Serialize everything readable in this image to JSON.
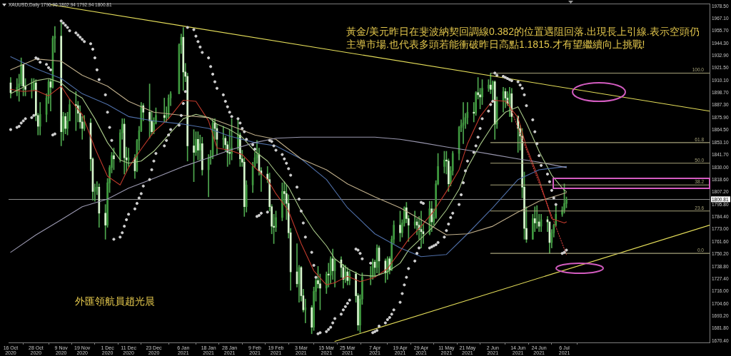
{
  "chart_data": {
    "type": "candlestick",
    "title": "XAUUSD,Daily 1796.96 1802.94 1792.94 1800.81",
    "annotations": [
      "黃金/美元昨日在斐波納契回調線0.382的位置遇阻回落.出現長上引線.表示空頭仍主導市場.也代表多頭若能衝破昨日高點1.1815.才有望繼續向上挑戰!",
      "外匯領航員趙光晨"
    ],
    "x": [
      "2020-10-16",
      "2020-10-19",
      "2020-10-20",
      "2020-10-21",
      "2020-10-22",
      "2020-10-23",
      "2020-10-26",
      "2020-10-27",
      "2020-10-28",
      "2020-10-29",
      "2020-10-30",
      "2020-11-02",
      "2020-11-03",
      "2020-11-04",
      "2020-11-05",
      "2020-11-06",
      "2020-11-09",
      "2020-11-10",
      "2020-11-11",
      "2020-11-12",
      "2020-11-13",
      "2020-11-16",
      "2020-11-17",
      "2020-11-18",
      "2020-11-19",
      "2020-11-20",
      "2020-11-23",
      "2020-11-24",
      "2020-11-25",
      "2020-11-26",
      "2020-11-27",
      "2020-11-30",
      "2020-12-01",
      "2020-12-02",
      "2020-12-03",
      "2020-12-04",
      "2020-12-07",
      "2020-12-08",
      "2020-12-09",
      "2020-12-10",
      "2020-12-11",
      "2020-12-14",
      "2020-12-15",
      "2020-12-16",
      "2020-12-17",
      "2020-12-18",
      "2020-12-21",
      "2020-12-22",
      "2020-12-23",
      "2020-12-24",
      "2020-12-28",
      "2020-12-29",
      "2020-12-30",
      "2020-12-31",
      "2021-01-04",
      "2021-01-05",
      "2021-01-06",
      "2021-01-07",
      "2021-01-08",
      "2021-01-11",
      "2021-01-12",
      "2021-01-13",
      "2021-01-14",
      "2021-01-15",
      "2021-01-18",
      "2021-01-19",
      "2021-01-20",
      "2021-01-21",
      "2021-01-22",
      "2021-01-25",
      "2021-01-26",
      "2021-01-27",
      "2021-01-28",
      "2021-01-29",
      "2021-02-01",
      "2021-02-02",
      "2021-02-03",
      "2021-02-04",
      "2021-02-05",
      "2021-02-08",
      "2021-02-09",
      "2021-02-10",
      "2021-02-11",
      "2021-02-12",
      "2021-02-15",
      "2021-02-16",
      "2021-02-17",
      "2021-02-18",
      "2021-02-19",
      "2021-02-22",
      "2021-02-23",
      "2021-02-24",
      "2021-02-25",
      "2021-02-26",
      "2021-03-01",
      "2021-03-02",
      "2021-03-03",
      "2021-03-04",
      "2021-03-05",
      "2021-03-08",
      "2021-03-09",
      "2021-03-10",
      "2021-03-11",
      "2021-03-12",
      "2021-03-15",
      "2021-03-16",
      "2021-03-17",
      "2021-03-18",
      "2021-03-19",
      "2021-03-22",
      "2021-03-23",
      "2021-03-24",
      "2021-03-25",
      "2021-03-26",
      "2021-03-29",
      "2021-03-30",
      "2021-03-31",
      "2021-04-01",
      "2021-04-05",
      "2021-04-06",
      "2021-04-07",
      "2021-04-08",
      "2021-04-09",
      "2021-04-12",
      "2021-04-13",
      "2021-04-14",
      "2021-04-15",
      "2021-04-16",
      "2021-04-19",
      "2021-04-20",
      "2021-04-21",
      "2021-04-22",
      "2021-04-23",
      "2021-04-26",
      "2021-04-27",
      "2021-04-28",
      "2021-04-29",
      "2021-04-30",
      "2021-05-03",
      "2021-05-04",
      "2021-05-05",
      "2021-05-06",
      "2021-05-07",
      "2021-05-10",
      "2021-05-11",
      "2021-05-12",
      "2021-05-13",
      "2021-05-14",
      "2021-05-17",
      "2021-05-18",
      "2021-05-19",
      "2021-05-20",
      "2021-05-21",
      "2021-05-24",
      "2021-05-25",
      "2021-05-26",
      "2021-05-27",
      "2021-05-28",
      "2021-05-31",
      "2021-06-01",
      "2021-06-02",
      "2021-06-03",
      "2021-06-04",
      "2021-06-07",
      "2021-06-08",
      "2021-06-09",
      "2021-06-10",
      "2021-06-11",
      "2021-06-14",
      "2021-06-15",
      "2021-06-16",
      "2021-06-17",
      "2021-06-18",
      "2021-06-21",
      "2021-06-22",
      "2021-06-23",
      "2021-06-24",
      "2021-06-25",
      "2021-06-28",
      "2021-06-29",
      "2021-06-30",
      "2021-07-01",
      "2021-07-02",
      "2021-07-05",
      "2021-07-06",
      "2021-07-07"
    ],
    "xlim": [
      "2020-10-15",
      "2021-09-13"
    ],
    "xticks": [
      {
        "value": "2020-10-16",
        "label": "16 Oct 2020"
      },
      {
        "value": "2020-10-28",
        "label": "28 Oct 2020"
      },
      {
        "value": "2020-11-09",
        "label": "9 Nov 2020"
      },
      {
        "value": "2020-11-19",
        "label": "19 Nov 2020"
      },
      {
        "value": "2020-12-01",
        "label": "1 Dec 2020"
      },
      {
        "value": "2020-12-11",
        "label": "11 Dec 2020"
      },
      {
        "value": "2020-12-23",
        "label": "23 Dec 2020"
      },
      {
        "value": "2021-01-06",
        "label": "6 Jan 2021"
      },
      {
        "value": "2021-01-18",
        "label": "18 Jan 2021"
      },
      {
        "value": "2021-01-28",
        "label": "28 Jan 2021"
      },
      {
        "value": "2021-02-09",
        "label": "9 Feb 2021"
      },
      {
        "value": "2021-02-19",
        "label": "19 Feb 2021"
      },
      {
        "value": "2021-03-03",
        "label": "3 Mar 2021"
      },
      {
        "value": "2021-03-15",
        "label": "15 Mar 2021"
      },
      {
        "value": "2021-03-25",
        "label": "25 Mar 2021"
      },
      {
        "value": "2021-04-07",
        "label": "7 Apr 2021"
      },
      {
        "value": "2021-04-19",
        "label": "19 Apr 2021"
      },
      {
        "value": "2021-04-29",
        "label": "29 Apr 2021"
      },
      {
        "value": "2021-05-11",
        "label": "11 May 2021"
      },
      {
        "value": "2021-05-21",
        "label": "21 May 2021"
      },
      {
        "value": "2021-06-02",
        "label": "2 Jun 2021"
      },
      {
        "value": "2021-06-14",
        "label": "14 Jun 2021"
      },
      {
        "value": "2021-06-24",
        "label": "24 Jun 2021"
      },
      {
        "value": "2021-07-06",
        "label": "6 Jul 2021"
      }
    ],
    "ylim": [
      1669,
      1981
    ],
    "yticks": [
      {
        "value": 1670.4,
        "label": "1670.40"
      },
      {
        "value": 1681.8,
        "label": "1681.80"
      },
      {
        "value": 1693.2,
        "label": "1693.20"
      },
      {
        "value": 1704.6,
        "label": "1704.60"
      },
      {
        "value": 1716,
        "label": "1716.00"
      },
      {
        "value": 1727.4,
        "label": "1727.40"
      },
      {
        "value": 1738.8,
        "label": "1738.80"
      },
      {
        "value": 1750.2,
        "label": "1750.20"
      },
      {
        "value": 1761.6,
        "label": "1761.60"
      },
      {
        "value": 1773,
        "label": "1773.00"
      },
      {
        "value": 1784.4,
        "label": "1784.40"
      },
      {
        "value": 1795.8,
        "label": "1795.80"
      },
      {
        "value": 1807.2,
        "label": "1807.20"
      },
      {
        "value": 1818.6,
        "label": "1818.60"
      },
      {
        "value": 1830,
        "label": "1830.00"
      },
      {
        "value": 1841.7,
        "label": "1841.70"
      },
      {
        "value": 1853.1,
        "label": "1853.10"
      },
      {
        "value": 1864.5,
        "label": "1864.50"
      },
      {
        "value": 1875.9,
        "label": "1875.90"
      },
      {
        "value": 1887.3,
        "label": "1887.30"
      },
      {
        "value": 1898.7,
        "label": "1898.70"
      },
      {
        "value": 1910.1,
        "label": "1910.10"
      },
      {
        "value": 1921.5,
        "label": "1921.50"
      },
      {
        "value": 1932.9,
        "label": "1932.90"
      },
      {
        "value": 1944.3,
        "label": "1944.30"
      },
      {
        "value": 1955.7,
        "label": "1955.70"
      },
      {
        "value": 1967.1,
        "label": "1967.10"
      },
      {
        "value": 1978.5,
        "label": "1978.50"
      }
    ],
    "ohlc": [
      [
        1908,
        1913,
        1894,
        1899
      ],
      [
        1899,
        1912,
        1896,
        1904
      ],
      [
        1904,
        1916,
        1891,
        1907
      ],
      [
        1907,
        1931,
        1905,
        1925
      ],
      [
        1925,
        1925,
        1896,
        1905
      ],
      [
        1905,
        1912,
        1896,
        1902
      ],
      [
        1902,
        1912,
        1894,
        1902
      ],
      [
        1902,
        1912,
        1901,
        1908
      ],
      [
        1908,
        1911,
        1873,
        1878
      ],
      [
        1878,
        1880,
        1860,
        1868
      ],
      [
        1868,
        1890,
        1860,
        1879
      ],
      [
        1879,
        1898,
        1872,
        1894
      ],
      [
        1894,
        1911,
        1889,
        1909
      ],
      [
        1909,
        1912,
        1882,
        1904
      ],
      [
        1904,
        1951,
        1903,
        1949
      ],
      [
        1949,
        1960,
        1936,
        1951
      ],
      [
        1951,
        1965,
        1850,
        1863
      ],
      [
        1863,
        1881,
        1855,
        1877
      ],
      [
        1877,
        1880,
        1861,
        1866
      ],
      [
        1866,
        1881,
        1860,
        1873
      ],
      [
        1873,
        1893,
        1873,
        1888
      ],
      [
        1888,
        1900,
        1864,
        1887
      ],
      [
        1887,
        1891,
        1872,
        1880
      ],
      [
        1880,
        1887,
        1866,
        1872
      ],
      [
        1872,
        1877,
        1856,
        1866
      ],
      [
        1866,
        1878,
        1864,
        1871
      ],
      [
        1871,
        1875,
        1827,
        1838
      ],
      [
        1838,
        1839,
        1800,
        1808
      ],
      [
        1808,
        1815,
        1799,
        1811
      ],
      [
        1811,
        1817,
        1805,
        1812
      ],
      [
        1812,
        1815,
        1775,
        1788
      ],
      [
        1788,
        1796,
        1764,
        1777
      ],
      [
        1777,
        1820,
        1775,
        1816
      ],
      [
        1816,
        1832,
        1807,
        1830
      ],
      [
        1830,
        1844,
        1825,
        1841
      ],
      [
        1841,
        1848,
        1828,
        1838
      ],
      [
        1838,
        1865,
        1835,
        1862
      ],
      [
        1862,
        1875,
        1856,
        1870
      ],
      [
        1870,
        1875,
        1824,
        1839
      ],
      [
        1839,
        1849,
        1826,
        1837
      ],
      [
        1837,
        1848,
        1831,
        1839
      ],
      [
        1839,
        1842,
        1820,
        1827
      ],
      [
        1827,
        1856,
        1826,
        1855
      ],
      [
        1855,
        1868,
        1846,
        1864
      ],
      [
        1864,
        1890,
        1863,
        1887
      ],
      [
        1887,
        1889,
        1873,
        1881
      ],
      [
        1881,
        1907,
        1857,
        1873
      ],
      [
        1873,
        1882,
        1860,
        1863
      ],
      [
        1863,
        1876,
        1861,
        1871
      ],
      [
        1871,
        1885,
        1870,
        1878
      ],
      [
        1878,
        1894,
        1872,
        1876
      ],
      [
        1876,
        1886,
        1872,
        1878
      ],
      [
        1878,
        1897,
        1875,
        1894
      ],
      [
        1894,
        1900,
        1887,
        1898
      ],
      [
        1898,
        1944,
        1898,
        1943
      ],
      [
        1943,
        1953,
        1935,
        1950
      ],
      [
        1950,
        1959,
        1901,
        1918
      ],
      [
        1918,
        1926,
        1909,
        1914
      ],
      [
        1914,
        1917,
        1836,
        1850
      ],
      [
        1850,
        1865,
        1817,
        1844
      ],
      [
        1844,
        1863,
        1841,
        1856
      ],
      [
        1856,
        1863,
        1837,
        1846
      ],
      [
        1846,
        1860,
        1836,
        1852
      ],
      [
        1852,
        1858,
        1823,
        1828
      ],
      [
        1828,
        1842,
        1803,
        1839
      ],
      [
        1839,
        1846,
        1833,
        1841
      ],
      [
        1841,
        1875,
        1838,
        1871
      ],
      [
        1871,
        1875,
        1856,
        1866
      ],
      [
        1866,
        1870,
        1842,
        1856
      ],
      [
        1856,
        1868,
        1848,
        1857
      ],
      [
        1857,
        1859,
        1845,
        1851
      ],
      [
        1851,
        1854,
        1831,
        1844
      ],
      [
        1844,
        1865,
        1833,
        1843
      ],
      [
        1843,
        1875,
        1837,
        1848
      ],
      [
        1848,
        1874,
        1846,
        1860
      ],
      [
        1860,
        1862,
        1831,
        1838
      ],
      [
        1838,
        1846,
        1831,
        1835
      ],
      [
        1835,
        1839,
        1785,
        1794
      ],
      [
        1794,
        1818,
        1789,
        1814
      ],
      [
        1814,
        1835,
        1807,
        1831
      ],
      [
        1831,
        1844,
        1830,
        1839
      ],
      [
        1839,
        1855,
        1834,
        1842
      ],
      [
        1842,
        1848,
        1823,
        1827
      ],
      [
        1827,
        1830,
        1808,
        1824
      ],
      [
        1824,
        1831,
        1816,
        1819
      ],
      [
        1819,
        1825,
        1790,
        1794
      ],
      [
        1794,
        1796,
        1769,
        1776
      ],
      [
        1776,
        1787,
        1760,
        1775
      ],
      [
        1775,
        1790,
        1771,
        1784
      ],
      [
        1784,
        1816,
        1781,
        1808
      ],
      [
        1808,
        1817,
        1796,
        1806
      ],
      [
        1806,
        1814,
        1782,
        1797
      ],
      [
        1797,
        1805,
        1765,
        1770
      ],
      [
        1770,
        1774,
        1717,
        1734
      ],
      [
        1734,
        1760,
        1720,
        1723
      ],
      [
        1723,
        1740,
        1706,
        1738
      ],
      [
        1738,
        1739,
        1707,
        1712
      ],
      [
        1712,
        1718,
        1697,
        1699
      ],
      [
        1699,
        1709,
        1687,
        1701
      ],
      [
        1701,
        1703,
        1677,
        1683
      ],
      [
        1683,
        1720,
        1680,
        1716
      ],
      [
        1716,
        1728,
        1707,
        1726
      ],
      [
        1726,
        1739,
        1719,
        1723
      ],
      [
        1723,
        1732,
        1699,
        1719
      ],
      [
        1719,
        1734,
        1714,
        1732
      ],
      [
        1732,
        1742,
        1720,
        1731
      ],
      [
        1731,
        1748,
        1723,
        1746
      ],
      [
        1746,
        1755,
        1727,
        1735
      ],
      [
        1735,
        1746,
        1720,
        1745
      ],
      [
        1745,
        1748,
        1729,
        1738
      ],
      [
        1738,
        1741,
        1719,
        1727
      ],
      [
        1727,
        1740,
        1724,
        1734
      ],
      [
        1734,
        1738,
        1722,
        1726
      ],
      [
        1726,
        1735,
        1722,
        1732
      ],
      [
        1732,
        1734,
        1706,
        1712
      ],
      [
        1712,
        1714,
        1680,
        1685
      ],
      [
        1685,
        1713,
        1678,
        1709
      ],
      [
        1709,
        1733,
        1704,
        1729
      ],
      [
        1729,
        1739,
        1722,
        1730
      ],
      [
        1730,
        1746,
        1727,
        1743
      ],
      [
        1743,
        1745,
        1730,
        1738
      ],
      [
        1738,
        1759,
        1733,
        1756
      ],
      [
        1756,
        1758,
        1731,
        1744
      ],
      [
        1744,
        1746,
        1724,
        1733
      ],
      [
        1733,
        1748,
        1727,
        1746
      ],
      [
        1746,
        1748,
        1732,
        1736
      ],
      [
        1736,
        1767,
        1735,
        1764
      ],
      [
        1764,
        1781,
        1760,
        1777
      ],
      [
        1777,
        1790,
        1762,
        1770
      ],
      [
        1770,
        1782,
        1766,
        1779
      ],
      [
        1779,
        1794,
        1776,
        1793
      ],
      [
        1793,
        1798,
        1779,
        1783
      ],
      [
        1783,
        1786,
        1762,
        1777
      ],
      [
        1777,
        1790,
        1774,
        1780
      ],
      [
        1780,
        1783,
        1768,
        1777
      ],
      [
        1777,
        1785,
        1764,
        1773
      ],
      [
        1773,
        1790,
        1756,
        1771
      ],
      [
        1771,
        1778,
        1760,
        1769
      ],
      [
        1769,
        1799,
        1768,
        1792
      ],
      [
        1792,
        1799,
        1771,
        1780
      ],
      [
        1780,
        1792,
        1777,
        1784
      ],
      [
        1784,
        1818,
        1783,
        1815
      ],
      [
        1815,
        1843,
        1814,
        1831
      ],
      [
        1831,
        1845,
        1825,
        1837
      ],
      [
        1837,
        1845,
        1824,
        1836
      ],
      [
        1836,
        1838,
        1808,
        1815
      ],
      [
        1815,
        1831,
        1813,
        1827
      ],
      [
        1827,
        1845,
        1823,
        1843
      ],
      [
        1843,
        1868,
        1837,
        1867
      ],
      [
        1867,
        1874,
        1863,
        1869
      ],
      [
        1869,
        1890,
        1852,
        1871
      ],
      [
        1871,
        1880,
        1866,
        1876
      ],
      [
        1876,
        1890,
        1870,
        1881
      ],
      [
        1881,
        1890,
        1872,
        1880
      ],
      [
        1880,
        1900,
        1878,
        1899
      ],
      [
        1899,
        1913,
        1893,
        1897
      ],
      [
        1897,
        1903,
        1884,
        1895
      ],
      [
        1895,
        1911,
        1888,
        1903
      ],
      [
        1903,
        1911,
        1900,
        1906
      ],
      [
        1906,
        1917,
        1898,
        1902
      ],
      [
        1902,
        1910,
        1892,
        1909
      ],
      [
        1909,
        1910,
        1856,
        1870
      ],
      [
        1870,
        1895,
        1866,
        1891
      ],
      [
        1891,
        1904,
        1881,
        1900
      ],
      [
        1900,
        1903,
        1885,
        1894
      ],
      [
        1894,
        1900,
        1887,
        1889
      ],
      [
        1889,
        1904,
        1877,
        1898
      ],
      [
        1898,
        1903,
        1872,
        1877
      ],
      [
        1877,
        1878,
        1844,
        1866
      ],
      [
        1866,
        1869,
        1846,
        1859
      ],
      [
        1859,
        1866,
        1802,
        1812
      ],
      [
        1812,
        1826,
        1764,
        1774
      ],
      [
        1774,
        1794,
        1761,
        1764
      ],
      [
        1764,
        1787,
        1764,
        1783
      ],
      [
        1783,
        1794,
        1771,
        1779
      ],
      [
        1779,
        1795,
        1774,
        1780
      ],
      [
        1780,
        1787,
        1771,
        1776
      ],
      [
        1776,
        1787,
        1771,
        1782
      ],
      [
        1782,
        1785,
        1771,
        1780
      ],
      [
        1780,
        1780,
        1751,
        1761
      ],
      [
        1761,
        1773,
        1756,
        1770
      ],
      [
        1770,
        1778,
        1766,
        1777
      ],
      [
        1777,
        1795,
        1776,
        1787
      ],
      [
        1787,
        1794,
        1785,
        1791
      ],
      [
        1791,
        1815,
        1788,
        1797
      ],
      [
        1796.96,
        1802.94,
        1792.94,
        1800.81
      ]
    ],
    "color": "#4fa84f",
    "colors": [
      "#d6f5cc",
      "#3f9a3f",
      "#3f9a3f",
      "#3f9a3f",
      "#d6f5cc",
      "#d6f5cc",
      "#3f9a3f",
      "#3f9a3f",
      "#d6f5cc",
      "#d6f5cc",
      "#3f9a3f",
      "#3f9a3f",
      "#3f9a3f",
      "#d6f5cc",
      "#3f9a3f",
      "#3f9a3f",
      "#d6f5cc",
      "#3f9a3f",
      "#d6f5cc",
      "#3f9a3f",
      "#3f9a3f",
      "#d6f5cc",
      "#d6f5cc",
      "#d6f5cc",
      "#d6f5cc",
      "#3f9a3f",
      "#d6f5cc",
      "#d6f5cc",
      "#3f9a3f",
      "#3f9a3f",
      "#d6f5cc",
      "#d6f5cc",
      "#3f9a3f",
      "#3f9a3f",
      "#3f9a3f",
      "#d6f5cc",
      "#3f9a3f",
      "#3f9a3f",
      "#d6f5cc",
      "#d6f5cc",
      "#3f9a3f",
      "#d6f5cc",
      "#3f9a3f",
      "#3f9a3f",
      "#3f9a3f",
      "#d6f5cc",
      "#d6f5cc",
      "#d6f5cc",
      "#3f9a3f",
      "#3f9a3f",
      "#d6f5cc",
      "#3f9a3f",
      "#3f9a3f",
      "#3f9a3f",
      "#3f9a3f",
      "#3f9a3f",
      "#d6f5cc",
      "#d6f5cc",
      "#d6f5cc",
      "#d6f5cc",
      "#3f9a3f",
      "#d6f5cc",
      "#3f9a3f",
      "#d6f5cc",
      "#3f9a3f",
      "#3f9a3f",
      "#3f9a3f",
      "#d6f5cc",
      "#d6f5cc",
      "#3f9a3f",
      "#d6f5cc",
      "#d6f5cc",
      "#d6f5cc",
      "#3f9a3f",
      "#3f9a3f",
      "#d6f5cc",
      "#d6f5cc",
      "#d6f5cc",
      "#3f9a3f",
      "#3f9a3f",
      "#3f9a3f",
      "#3f9a3f",
      "#d6f5cc",
      "#d6f5cc",
      "#d6f5cc",
      "#d6f5cc",
      "#d6f5cc",
      "#d6f5cc",
      "#3f9a3f",
      "#3f9a3f",
      "#d6f5cc",
      "#d6f5cc",
      "#d6f5cc",
      "#d6f5cc",
      "#d6f5cc",
      "#3f9a3f",
      "#d6f5cc",
      "#d6f5cc",
      "#3f9a3f",
      "#d6f5cc",
      "#3f9a3f",
      "#3f9a3f",
      "#d6f5cc",
      "#d6f5cc",
      "#3f9a3f",
      "#d6f5cc",
      "#3f9a3f",
      "#d6f5cc",
      "#3f9a3f",
      "#d6f5cc",
      "#d6f5cc",
      "#3f9a3f",
      "#d6f5cc",
      "#3f9a3f",
      "#d6f5cc",
      "#d6f5cc",
      "#3f9a3f",
      "#3f9a3f",
      "#3f9a3f",
      "#3f9a3f",
      "#d6f5cc",
      "#3f9a3f",
      "#d6f5cc",
      "#d6f5cc",
      "#3f9a3f",
      "#d6f5cc",
      "#3f9a3f",
      "#3f9a3f",
      "#d6f5cc",
      "#3f9a3f",
      "#3f9a3f",
      "#d6f5cc",
      "#d6f5cc",
      "#3f9a3f",
      "#d6f5cc",
      "#d6f5cc",
      "#d6f5cc",
      "#d6f5cc",
      "#3f9a3f",
      "#d6f5cc",
      "#3f9a3f",
      "#3f9a3f",
      "#3f9a3f",
      "#3f9a3f",
      "#d6f5cc",
      "#d6f5cc",
      "#3f9a3f",
      "#3f9a3f",
      "#3f9a3f",
      "#3f9a3f",
      "#3f9a3f",
      "#3f9a3f",
      "#3f9a3f",
      "#d6f5cc",
      "#3f9a3f",
      "#d6f5cc",
      "#d6f5cc",
      "#3f9a3f",
      "#3f9a3f",
      "#d6f5cc",
      "#3f9a3f",
      "#d6f5cc",
      "#3f9a3f",
      "#3f9a3f",
      "#d6f5cc",
      "#d6f5cc",
      "#3f9a3f",
      "#d6f5cc",
      "#d6f5cc",
      "#d6f5cc",
      "#d6f5cc",
      "#d6f5cc",
      "#d6f5cc",
      "#3f9a3f",
      "#d6f5cc",
      "#3f9a3f",
      "#d6f5cc",
      "#3f9a3f",
      "#d6f5cc",
      "#d6f5cc",
      "#3f9a3f",
      "#3f9a3f",
      "#3f9a3f",
      "#3f9a3f",
      "#3f9a3f",
      "#3f9a3f"
    ],
    "series": [
      {
        "type": "line",
        "name": "100.0",
        "color": "#a6a27a",
        "x": [
          "2021-06-01",
          "2021-09-13"
        ],
        "values": [
          1917,
          1917
        ]
      },
      {
        "type": "line",
        "name": "61.8",
        "color": "#a6a27a",
        "x": [
          "2021-06-01",
          "2021-09-13"
        ],
        "values": [
          1853,
          1853
        ]
      },
      {
        "type": "line",
        "name": "50.0",
        "color": "#a6a27a",
        "x": [
          "2021-06-01",
          "2021-09-13"
        ],
        "values": [
          1834,
          1834
        ]
      },
      {
        "type": "line",
        "name": "38.2",
        "color": "#a6a27a",
        "x": [
          "2021-06-01",
          "2021-09-13"
        ],
        "values": [
          1814,
          1814
        ]
      },
      {
        "type": "line",
        "name": "23.6",
        "color": "#a6a27a",
        "x": [
          "2021-06-01",
          "2021-09-13"
        ],
        "values": [
          1790,
          1790
        ]
      },
      {
        "type": "line",
        "name": "0.0",
        "color": "#a6a27a",
        "x": [
          "2021-06-01",
          "2021-09-13"
        ],
        "values": [
          1751,
          1751
        ]
      },
      {
        "type": "line",
        "color": "#e6df5a",
        "x": [
          "2020-11-04",
          "2021-09-13"
        ],
        "values": [
          1980,
          1882
        ]
      },
      {
        "type": "line",
        "color": "#e6df5a",
        "x": [
          "2021-03-19",
          "2021-09-13"
        ],
        "values": [
          1670,
          1777
        ]
      },
      {
        "type": "line",
        "color": "#cc3b3b",
        "line_style": "dotted",
        "x": [
          "2021-06-09",
          "2021-07-07"
        ],
        "values": [
          1892,
          1750
        ]
      },
      {
        "type": "line",
        "color": "#9a98b0",
        "x": [
          "2020-10-16",
          "2020-10-28",
          "2020-11-09",
          "2020-11-19",
          "2020-12-01",
          "2020-12-11",
          "2020-12-23",
          "2021-01-06",
          "2021-01-18",
          "2021-01-28",
          "2021-02-09",
          "2021-02-19",
          "2021-03-03",
          "2021-03-15",
          "2021-03-25",
          "2021-04-07",
          "2021-04-19",
          "2021-04-29",
          "2021-05-11",
          "2021-05-21",
          "2021-06-02",
          "2021-06-14",
          "2021-06-24",
          "2021-07-07"
        ],
        "values": [
          1752,
          1768,
          1782,
          1794,
          1801,
          1811,
          1820,
          1831,
          1839,
          1846,
          1853,
          1857,
          1858,
          1858,
          1858,
          1858,
          1856,
          1853,
          1849,
          1846,
          1842,
          1838,
          1835,
          1830
        ]
      },
      {
        "type": "line",
        "color": "#bfae8a",
        "x": [
          "2020-10-16",
          "2020-10-28",
          "2020-11-09",
          "2020-11-19",
          "2020-12-01",
          "2020-12-11",
          "2020-12-23",
          "2021-01-06",
          "2021-01-18",
          "2021-01-28",
          "2021-02-09",
          "2021-02-19",
          "2021-03-03",
          "2021-03-15",
          "2021-03-25",
          "2021-04-07",
          "2021-04-19",
          "2021-04-29",
          "2021-05-11",
          "2021-05-21",
          "2021-06-02",
          "2021-06-14",
          "2021-06-24",
          "2021-07-07"
        ],
        "values": [
          1920,
          1930,
          1928,
          1915,
          1905,
          1891,
          1881,
          1878,
          1876,
          1869,
          1860,
          1856,
          1838,
          1828,
          1815,
          1803,
          1793,
          1782,
          1768,
          1769,
          1776,
          1789,
          1799,
          1807
        ]
      },
      {
        "type": "line",
        "color": "#4f6fa8",
        "x": [
          "2020-10-16",
          "2020-10-28",
          "2020-11-09",
          "2020-11-19",
          "2020-12-01",
          "2020-12-11",
          "2020-12-23",
          "2021-01-06",
          "2021-01-18",
          "2021-01-28",
          "2021-02-09",
          "2021-02-19",
          "2021-03-03",
          "2021-03-15",
          "2021-03-25",
          "2021-04-07",
          "2021-04-19",
          "2021-04-29",
          "2021-05-11",
          "2021-05-21",
          "2021-06-02",
          "2021-06-14",
          "2021-06-24",
          "2021-07-07"
        ],
        "values": [
          1932,
          1921,
          1912,
          1898,
          1888,
          1877,
          1873,
          1870,
          1866,
          1859,
          1853,
          1850,
          1838,
          1819,
          1793,
          1769,
          1756,
          1748,
          1750,
          1769,
          1793,
          1819,
          1828,
          1831
        ]
      },
      {
        "type": "line",
        "color": "#a8c888",
        "x": [
          "2020-10-16",
          "2020-10-22",
          "2020-10-28",
          "2020-11-03",
          "2020-11-09",
          "2020-11-13",
          "2020-11-19",
          "2020-11-25",
          "2020-12-01",
          "2020-12-07",
          "2020-12-11",
          "2020-12-17",
          "2020-12-23",
          "2020-12-30",
          "2021-01-06",
          "2021-01-12",
          "2021-01-18",
          "2021-01-22",
          "2021-01-28",
          "2021-02-03",
          "2021-02-09",
          "2021-02-15",
          "2021-02-19",
          "2021-02-25",
          "2021-03-03",
          "2021-03-09",
          "2021-03-15",
          "2021-03-19",
          "2021-03-25",
          "2021-03-31",
          "2021-04-07",
          "2021-04-13",
          "2021-04-19",
          "2021-04-23",
          "2021-04-29",
          "2021-05-05",
          "2021-05-11",
          "2021-05-17",
          "2021-05-21",
          "2021-05-27",
          "2021-06-02",
          "2021-06-08",
          "2021-06-14",
          "2021-06-18",
          "2021-06-24",
          "2021-06-30",
          "2021-07-06",
          "2021-07-07"
        ],
        "values": [
          1898,
          1904,
          1910,
          1912,
          1908,
          1901,
          1894,
          1875,
          1853,
          1837,
          1834,
          1836,
          1845,
          1860,
          1875,
          1879,
          1876,
          1870,
          1865,
          1858,
          1845,
          1836,
          1826,
          1812,
          1790,
          1772,
          1758,
          1746,
          1737,
          1731,
          1730,
          1734,
          1742,
          1754,
          1765,
          1776,
          1791,
          1810,
          1830,
          1851,
          1869,
          1881,
          1886,
          1871,
          1845,
          1823,
          1809,
          1808
        ]
      },
      {
        "type": "line",
        "color": "#c0392b",
        "x": [
          "2020-10-16",
          "2020-10-22",
          "2020-10-28",
          "2020-11-03",
          "2020-11-09",
          "2020-11-13",
          "2020-11-19",
          "2020-11-25",
          "2020-12-01",
          "2020-12-07",
          "2020-12-11",
          "2020-12-17",
          "2020-12-23",
          "2020-12-30",
          "2021-01-06",
          "2021-01-12",
          "2021-01-18",
          "2021-01-22",
          "2021-01-28",
          "2021-02-03",
          "2021-02-09",
          "2021-02-15",
          "2021-02-19",
          "2021-02-25",
          "2021-03-03",
          "2021-03-09",
          "2021-03-15",
          "2021-03-19",
          "2021-03-25",
          "2021-03-31",
          "2021-04-07",
          "2021-04-13",
          "2021-04-19",
          "2021-04-23",
          "2021-04-29",
          "2021-05-05",
          "2021-05-11",
          "2021-05-17",
          "2021-05-21",
          "2021-05-27",
          "2021-06-02",
          "2021-06-08",
          "2021-06-14",
          "2021-06-18",
          "2021-06-24",
          "2021-06-30",
          "2021-07-06",
          "2021-07-07"
        ],
        "values": [
          1902,
          1900,
          1901,
          1896,
          1905,
          1893,
          1879,
          1848,
          1822,
          1814,
          1830,
          1847,
          1863,
          1875,
          1892,
          1891,
          1873,
          1848,
          1846,
          1842,
          1830,
          1819,
          1806,
          1790,
          1760,
          1735,
          1722,
          1724,
          1730,
          1725,
          1729,
          1737,
          1753,
          1764,
          1776,
          1790,
          1808,
          1828,
          1852,
          1877,
          1892,
          1891,
          1876,
          1849,
          1819,
          1783,
          1779,
          1780
        ]
      },
      {
        "type": "scatter",
        "color": "#d0d0d0",
        "marker": "circle",
        "values": [
          1865,
          1867,
          1868,
          1871,
          1873,
          1875,
          1876,
          1878,
          1931,
          1930,
          1927,
          1925,
          1922,
          1920,
          1860,
          1861,
          1965,
          1963,
          1961,
          1959,
          1956,
          1954,
          1952,
          1950,
          1948,
          1946,
          1944,
          1939,
          1931,
          1920,
          1911,
          1897,
          1881,
          1867,
          1855,
          1764,
          1766,
          1770,
          1776,
          1782,
          1787,
          1792,
          1797,
          1802,
          1806,
          1813,
          1819,
          1828,
          1836,
          1843,
          1850,
          1855,
          1860,
          1865,
          1869,
          1878,
          1889,
          1900,
          1959,
          1957,
          1951,
          1946,
          1941,
          1936,
          1931,
          1923,
          1916,
          1909,
          1903,
          1897,
          1891,
          1886,
          1881,
          1877,
          1875,
          1871,
          1866,
          1863,
          1856,
          1851,
          1847,
          1785,
          1786,
          1788,
          1789,
          1855,
          1854,
          1850,
          1846,
          1842,
          1838,
          1834,
          1829,
          1823,
          1812,
          1801,
          1790,
          1779,
          1766,
          1752,
          1740,
          1729,
          1677,
          1678,
          1679,
          1681,
          1683,
          1687,
          1691,
          1695,
          1699,
          1702,
          1705,
          1708,
          1755,
          1754,
          1751,
          1746,
          1742,
          1678,
          1679,
          1680,
          1684,
          1687,
          1690,
          1692,
          1695,
          1699,
          1706,
          1714,
          1722,
          1729,
          1737,
          1744,
          1751,
          1756,
          1798,
          1797,
          1756,
          1757,
          1758,
          1759,
          1761,
          1766,
          1772,
          1778,
          1784,
          1788,
          1796,
          1805,
          1816,
          1827,
          1836,
          1844,
          1850,
          1858,
          1866,
          1875,
          1882,
          1888,
          1891,
          1917,
          1915,
          1914,
          1913,
          1912,
          1911,
          1910,
          1909,
          1906,
          1903,
          1897,
          1887,
          1874,
          1863,
          1852,
          1841,
          1832,
          1824,
          1817,
          1809,
          1802,
          1796,
          1751,
          1752,
          1754
        ]
      }
    ],
    "ref_lines": [
      {
        "axis": "y",
        "value": 1800.81,
        "label": "1800.81",
        "color": "#8c8c8c"
      }
    ]
  }
}
